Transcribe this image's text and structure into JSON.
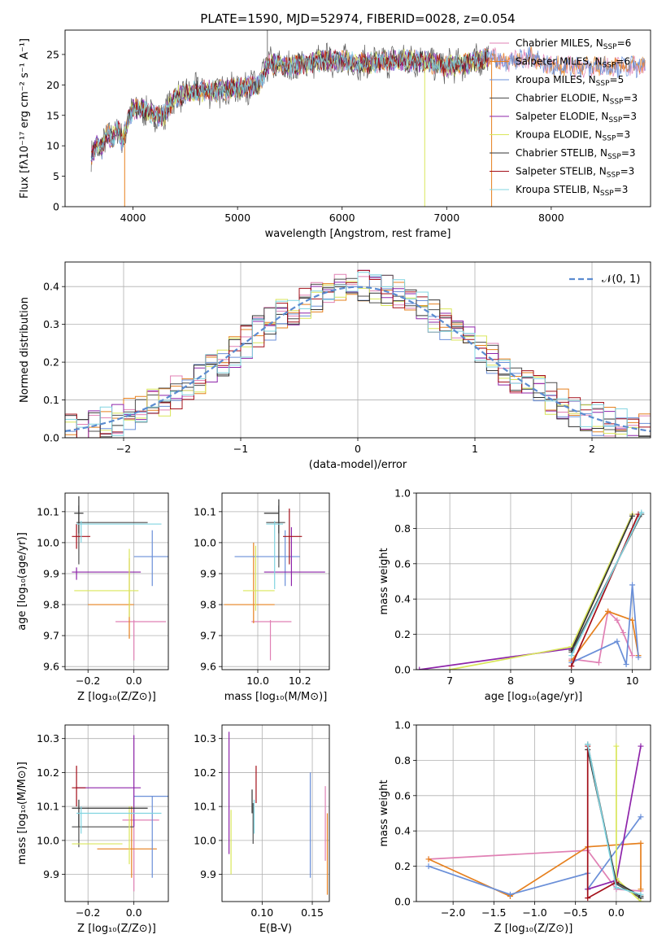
{
  "palette": [
    "#e080b4",
    "#e6801e",
    "#6a8fd8",
    "#4d4d4d",
    "#8e24aa",
    "#d9e65a",
    "#333333",
    "#a30f19",
    "#80d4e0"
  ],
  "chart_data": [
    {
      "id": "spectrum",
      "type": "line",
      "title": "PLATE=1590, MJD=52974, FIBERID=0028, z=0.054",
      "xlabel": "wavelength [Angstrom, rest frame]",
      "ylabel": "Flux [fλ10⁻¹⁷ erg cm⁻² s⁻¹ A⁻¹]",
      "xlim": [
        3350,
        8950
      ],
      "ylim": [
        0,
        29
      ],
      "xticks": [
        "4000",
        "5000",
        "6000",
        "7000",
        "8000"
      ],
      "yticks": [
        "0",
        "5",
        "10",
        "15",
        "20",
        "25"
      ],
      "grid": false,
      "legend_position": "right",
      "legend": [
        "Chabrier MILES, N_SSP=6",
        "Salpeter MILES, N_SSP=6",
        "Kroupa MILES, N_SSP=5",
        "Chabrier ELODIE, N_SSP=3",
        "Salpeter ELODIE, N_SSP=3",
        "Kroupa ELODIE, N_SSP=3",
        "Chabrier STELIB, N_SSP=3",
        "Salpeter STELIB, N_SSP=3",
        "Kroupa STELIB, N_SSP=3"
      ],
      "continuum": {
        "x": [
          3600,
          3650,
          3700,
          3750,
          3800,
          3850,
          3900,
          3950,
          4000,
          4100,
          4200,
          4300,
          4400,
          4500,
          4600,
          4800,
          5000,
          5200,
          5300,
          5500,
          5800,
          6000,
          6200,
          6500,
          6700,
          6900,
          7000,
          7200,
          7400,
          7600,
          7800,
          8000,
          8200,
          8400,
          8600,
          8800,
          8900
        ],
        "y": [
          8,
          10,
          9.5,
          12,
          11,
          13,
          10.5,
          14,
          16,
          16,
          15,
          15,
          18,
          18.5,
          19,
          19,
          19.5,
          20,
          23.5,
          23,
          24,
          24,
          23.5,
          24,
          24,
          23.5,
          23,
          23.5,
          24.5,
          24,
          24.5,
          23,
          23,
          23,
          23,
          23,
          23
        ]
      },
      "spikes": [
        {
          "x": 3920,
          "y": 0
        },
        {
          "x": 5285,
          "y": 29
        },
        {
          "x": 6790,
          "y": 0
        },
        {
          "x": 7430,
          "y": 0
        }
      ]
    },
    {
      "id": "residuals",
      "type": "bar",
      "xlabel": "(data-model)/error",
      "ylabel": "Normed distribution",
      "xlim": [
        -2.5,
        2.5
      ],
      "ylim": [
        0,
        0.465
      ],
      "xticks": [
        "−2",
        "−1",
        "0",
        "1",
        "2"
      ],
      "yticks": [
        "0.0",
        "0.1",
        "0.2",
        "0.3",
        "0.4"
      ],
      "grid": true,
      "legend_position": "top-right",
      "legend": [
        "𝒩(0, 1)"
      ],
      "bin_width": 0.1
    },
    {
      "id": "age-vs-Z",
      "type": "scatter",
      "xlabel": "Z [log₁₀(Z/Z⊙)]",
      "ylabel": "age  [log₁₀(age/yr)]",
      "xlim": [
        -0.3,
        0.15
      ],
      "ylim": [
        9.59,
        10.16
      ],
      "xticks": [
        "−0.2",
        "0.0"
      ],
      "yticks": [
        "9.6",
        "9.7",
        "9.8",
        "9.9",
        "10.0",
        "10.1"
      ],
      "grid": true,
      "points": [
        {
          "x": 0.0,
          "y": 9.745,
          "xe": [
            -0.08,
            0.14
          ],
          "ye": [
            9.62,
            9.75
          ]
        },
        {
          "x": -0.02,
          "y": 9.8,
          "xe": [
            -0.2,
            0.0
          ],
          "ye": [
            9.69,
            9.95
          ]
        },
        {
          "x": 0.08,
          "y": 9.955,
          "xe": [
            0.0,
            0.15
          ],
          "ye": [
            9.86,
            10.04
          ]
        },
        {
          "x": -0.24,
          "y": 10.065,
          "xe": [
            -0.25,
            0.06
          ],
          "ye": [
            9.93,
            10.12
          ]
        },
        {
          "x": -0.25,
          "y": 9.905,
          "xe": [
            -0.27,
            0.03
          ],
          "ye": [
            9.88,
            9.92
          ]
        },
        {
          "x": -0.02,
          "y": 9.845,
          "xe": [
            -0.26,
            0.02
          ],
          "ye": [
            9.76,
            9.98
          ]
        },
        {
          "x": -0.24,
          "y": 10.095,
          "xe": [
            -0.26,
            -0.22
          ],
          "ye": [
            10.03,
            10.15
          ]
        },
        {
          "x": -0.25,
          "y": 10.02,
          "xe": [
            -0.27,
            -0.19
          ],
          "ye": [
            9.98,
            10.06
          ]
        },
        {
          "x": -0.23,
          "y": 10.06,
          "xe": [
            -0.25,
            0.12
          ],
          "ye": [
            10.0,
            10.07
          ]
        }
      ]
    },
    {
      "id": "age-vs-mass",
      "type": "scatter",
      "xlabel": "mass [log₁₀(M/M⊙)]",
      "ylabel": "",
      "xlim": [
        9.83,
        10.34
      ],
      "ylim": [
        9.59,
        10.16
      ],
      "xticks": [
        "10.0",
        "10.2"
      ],
      "yticks": [
        "9.6",
        "9.7",
        "9.8",
        "9.9",
        "10.0",
        "10.1"
      ],
      "grid": true,
      "points": [
        {
          "x": 10.06,
          "y": 9.745,
          "xe": [
            9.97,
            10.16
          ],
          "ye": [
            9.62,
            9.75
          ]
        },
        {
          "x": 9.98,
          "y": 9.8,
          "xe": [
            9.84,
            10.08
          ],
          "ye": [
            9.74,
            10.0
          ]
        },
        {
          "x": 10.13,
          "y": 9.955,
          "xe": [
            9.89,
            10.2
          ],
          "ye": [
            9.86,
            10.04
          ]
        },
        {
          "x": 10.1,
          "y": 10.065,
          "xe": [
            10.04,
            10.13
          ],
          "ye": [
            9.92,
            10.12
          ]
        },
        {
          "x": 10.16,
          "y": 9.905,
          "xe": [
            10.03,
            10.32
          ],
          "ye": [
            9.86,
            10.05
          ]
        },
        {
          "x": 9.99,
          "y": 9.845,
          "xe": [
            9.93,
            10.08
          ],
          "ye": [
            9.78,
            9.99
          ]
        },
        {
          "x": 10.1,
          "y": 10.095,
          "xe": [
            10.03,
            10.1
          ],
          "ye": [
            10.03,
            10.14
          ]
        },
        {
          "x": 10.15,
          "y": 10.02,
          "xe": [
            10.12,
            10.21
          ],
          "ye": [
            9.93,
            10.11
          ]
        },
        {
          "x": 10.08,
          "y": 10.06,
          "xe": [
            10.04,
            10.12
          ],
          "ye": [
            9.85,
            10.07
          ]
        }
      ]
    },
    {
      "id": "mw-vs-age",
      "type": "line",
      "xlabel": "age  [log₁₀(age/yr)]",
      "ylabel": "mass weight",
      "xlim": [
        6.45,
        10.3
      ],
      "ylim": [
        0,
        1
      ],
      "xticks": [
        "7",
        "8",
        "9",
        "10"
      ],
      "yticks": [
        "0.0",
        "0.2",
        "0.4",
        "0.6",
        "0.8",
        "1.0"
      ],
      "grid": true,
      "series": [
        {
          "x": [
            9.0,
            9.45,
            9.6,
            9.75,
            9.85,
            10.0
          ],
          "y": [
            0.06,
            0.04,
            0.33,
            0.28,
            0.21,
            0.08
          ]
        },
        {
          "x": [
            9.0,
            9.6,
            10.0,
            10.1
          ],
          "y": [
            0.05,
            0.33,
            0.28,
            0.08
          ]
        },
        {
          "x": [
            9.0,
            9.75,
            9.9,
            10.0,
            10.1
          ],
          "y": [
            0.04,
            0.16,
            0.03,
            0.48,
            0.07
          ]
        },
        {
          "x": [
            9.0,
            10.15
          ],
          "y": [
            0.1,
            0.88
          ]
        },
        {
          "x": [
            6.5,
            9.0,
            10.0
          ],
          "y": [
            0.0,
            0.12,
            0.88
          ]
        },
        {
          "x": [
            7.0,
            9.0,
            10.0
          ],
          "y": [
            0.0,
            0.13,
            0.88
          ]
        },
        {
          "x": [
            9.0,
            10.0
          ],
          "y": [
            0.11,
            0.87
          ]
        },
        {
          "x": [
            9.0,
            10.1
          ],
          "y": [
            0.02,
            0.88
          ]
        },
        {
          "x": [
            9.0,
            10.15
          ],
          "y": [
            0.08,
            0.89
          ]
        }
      ]
    },
    {
      "id": "mass-vs-Z",
      "type": "scatter",
      "xlabel": "Z [log₁₀(Z/Z⊙)]",
      "ylabel": "mass [log₁₀(M/M⊙)]",
      "xlim": [
        -0.3,
        0.15
      ],
      "ylim": [
        9.82,
        10.34
      ],
      "xticks": [
        "−0.2",
        "0.0"
      ],
      "yticks": [
        "9.9",
        "10.0",
        "10.1",
        "10.2",
        "10.3"
      ],
      "grid": true,
      "points": [
        {
          "x": 0.0,
          "y": 10.06,
          "xe": [
            -0.05,
            0.11
          ],
          "ye": [
            9.85,
            10.06
          ]
        },
        {
          "x": -0.01,
          "y": 9.975,
          "xe": [
            -0.16,
            0.1
          ],
          "ye": [
            9.89,
            10.1
          ]
        },
        {
          "x": 0.08,
          "y": 10.13,
          "xe": [
            0.0,
            0.15
          ],
          "ye": [
            9.89,
            10.13
          ]
        },
        {
          "x": -0.24,
          "y": 10.04,
          "xe": [
            -0.27,
            0.0
          ],
          "ye": [
            9.98,
            10.08
          ]
        },
        {
          "x": 0.0,
          "y": 10.155,
          "xe": [
            -0.25,
            0.03
          ],
          "ye": [
            10.04,
            10.31
          ]
        },
        {
          "x": -0.02,
          "y": 9.99,
          "xe": [
            -0.27,
            -0.05
          ],
          "ye": [
            9.93,
            10.1
          ]
        },
        {
          "x": -0.24,
          "y": 10.095,
          "xe": [
            -0.27,
            0.06
          ],
          "ye": [
            10.04,
            10.12
          ]
        },
        {
          "x": -0.25,
          "y": 10.155,
          "xe": [
            -0.27,
            -0.21
          ],
          "ye": [
            10.1,
            10.22
          ]
        },
        {
          "x": -0.23,
          "y": 10.08,
          "xe": [
            -0.25,
            0.12
          ],
          "ye": [
            10.02,
            10.1
          ]
        }
      ]
    },
    {
      "id": "mass-vs-EBV",
      "type": "scatter",
      "xlabel": "E(B-V)",
      "ylabel": "",
      "xlim": [
        0.06,
        0.167
      ],
      "ylim": [
        9.82,
        10.34
      ],
      "xticks": [
        "0.10",
        "0.15"
      ],
      "yticks": [
        "9.9",
        "10.0",
        "10.1",
        "10.2",
        "10.3"
      ],
      "grid": true,
      "points": [
        {
          "x": 0.163,
          "y": 10.06,
          "xe": [
            0.163,
            0.163
          ],
          "ye": [
            9.94,
            10.16
          ]
        },
        {
          "x": 0.165,
          "y": 9.975,
          "xe": [
            0.165,
            0.165
          ],
          "ye": [
            9.84,
            10.08
          ]
        },
        {
          "x": 0.148,
          "y": 10.13,
          "xe": [
            0.148,
            0.148
          ],
          "ye": [
            9.89,
            10.2
          ]
        },
        {
          "x": 0.091,
          "y": 10.04,
          "xe": [
            0.091,
            0.091
          ],
          "ye": [
            9.99,
            10.11
          ]
        },
        {
          "x": 0.067,
          "y": 10.155,
          "xe": [
            0.067,
            0.067
          ],
          "ye": [
            9.96,
            10.32
          ]
        },
        {
          "x": 0.069,
          "y": 9.99,
          "xe": [
            0.069,
            0.069
          ],
          "ye": [
            9.9,
            10.09
          ]
        },
        {
          "x": 0.09,
          "y": 10.095,
          "xe": [
            0.09,
            0.09
          ],
          "ye": [
            10.08,
            10.15
          ]
        },
        {
          "x": 0.094,
          "y": 10.155,
          "xe": [
            0.094,
            0.094
          ],
          "ye": [
            10.11,
            10.22
          ]
        },
        {
          "x": 0.092,
          "y": 10.08,
          "xe": [
            0.092,
            0.092
          ],
          "ye": [
            10.02,
            10.12
          ]
        }
      ]
    },
    {
      "id": "mw-vs-Z",
      "type": "line",
      "xlabel": "Z [log₁₀(Z/Z⊙)]",
      "ylabel": "mass weight",
      "xlim": [
        -2.45,
        0.42
      ],
      "ylim": [
        0,
        1
      ],
      "xticks": [
        "−2.0",
        "−1.5",
        "−1.0",
        "−0.5",
        "0.0"
      ],
      "yticks": [
        "0.0",
        "0.2",
        "0.4",
        "0.6",
        "0.8",
        "1.0"
      ],
      "grid": true,
      "series": [
        {
          "x": [
            -2.3,
            -0.35,
            0.0,
            0.3
          ],
          "y": [
            0.24,
            0.29,
            0.07,
            0.06
          ]
        },
        {
          "x": [
            -2.3,
            -1.3,
            -0.35,
            0.3,
            0.3
          ],
          "y": [
            0.24,
            0.03,
            0.31,
            0.33,
            0.07
          ]
        },
        {
          "x": [
            -2.3,
            -1.3,
            -0.35,
            -0.35,
            0.3
          ],
          "y": [
            0.2,
            0.04,
            0.16,
            0.07,
            0.48
          ]
        },
        {
          "x": [
            -0.35,
            0.0,
            0.3
          ],
          "y": [
            0.89,
            0.1,
            0.02
          ]
        },
        {
          "x": [
            -0.35,
            0.0,
            0.3
          ],
          "y": [
            0.07,
            0.12,
            0.88
          ]
        },
        {
          "x": [
            0.0,
            0.0,
            0.3
          ],
          "y": [
            0.88,
            0.13,
            0.0
          ]
        },
        {
          "x": [
            -0.35,
            0.0,
            0.3
          ],
          "y": [
            0.86,
            0.11,
            0.03
          ]
        },
        {
          "x": [
            -0.35,
            -0.35,
            0.0
          ],
          "y": [
            0.88,
            0.02,
            0.11
          ]
        },
        {
          "x": [
            -0.35,
            0.0,
            0.3
          ],
          "y": [
            0.89,
            0.08,
            0.04
          ]
        }
      ]
    }
  ]
}
